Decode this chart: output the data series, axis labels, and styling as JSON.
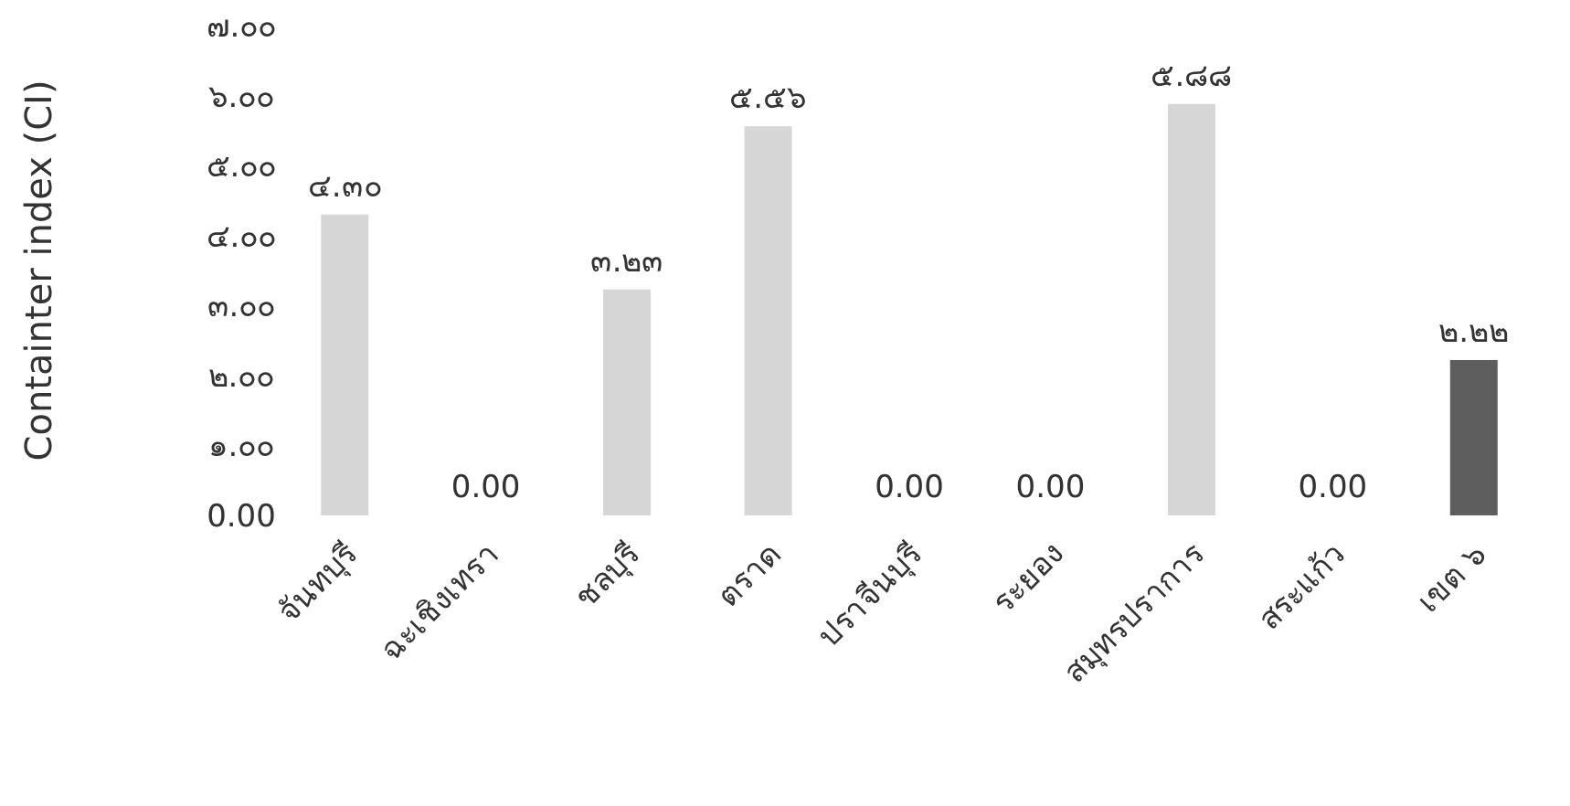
{
  "chart_data": {
    "type": "bar",
    "categories": [
      "จันทบุรี",
      "ฉะเชิงเทรา",
      "ชลบุรี",
      "ตราด",
      "ปราจีนบุรี",
      "ระยอง",
      "สมุทรปราการ",
      "สระแก้ว",
      "เขต ๖"
    ],
    "values": [
      4.3,
      0.0,
      3.23,
      5.56,
      0.0,
      0.0,
      5.88,
      0.0,
      2.22
    ],
    "value_labels": [
      "๔.๓๐",
      "0.00",
      "๓.๒๓",
      "๕.๕๖",
      "0.00",
      "0.00",
      "๕.๘๘",
      "0.00",
      "๒.๒๒"
    ],
    "colors": [
      "#d6d6d6",
      "#d6d6d6",
      "#d6d6d6",
      "#d6d6d6",
      "#d6d6d6",
      "#d6d6d6",
      "#d6d6d6",
      "#d6d6d6",
      "#5e5e5e"
    ],
    "ylabel": "Containter index (CI)",
    "ylim": [
      0,
      7
    ],
    "yticks": [
      {
        "value": 0,
        "label": "0.00"
      },
      {
        "value": 1,
        "label": "๑.๐๐"
      },
      {
        "value": 2,
        "label": "๒.๐๐"
      },
      {
        "value": 3,
        "label": "๓.๐๐"
      },
      {
        "value": 4,
        "label": "๔.๐๐"
      },
      {
        "value": 5,
        "label": "๕.๐๐"
      },
      {
        "value": 6,
        "label": "๖.๐๐"
      },
      {
        "value": 7,
        "label": "๗.๐๐"
      }
    ]
  }
}
